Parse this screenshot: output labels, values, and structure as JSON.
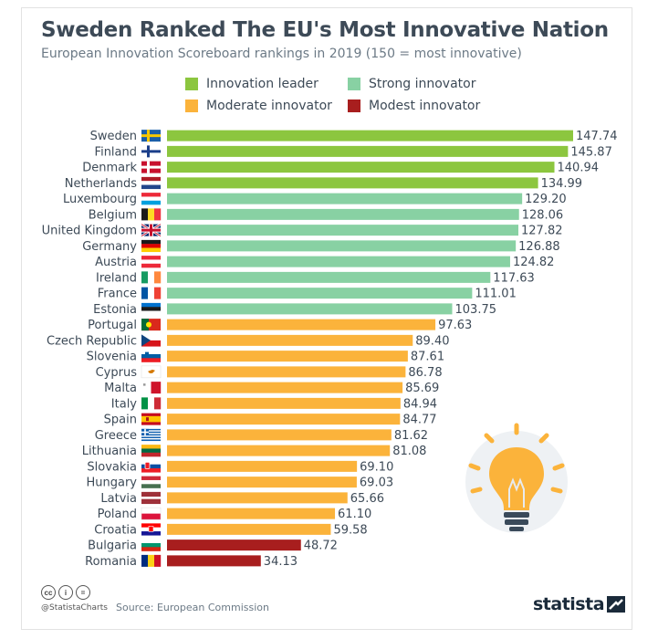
{
  "title": "Sweden Ranked The EU's Most Innovative Nation",
  "subtitle": "European Innovation Scoreboard rankings in 2019 (150 = most innovative)",
  "legend": [
    {
      "label": "Innovation leader",
      "color": "#8cc63f"
    },
    {
      "label": "Strong innovator",
      "color": "#88d1a3"
    },
    {
      "label": "Moderate innovator",
      "color": "#fbb33b"
    },
    {
      "label": "Modest innovator",
      "color": "#a81e1e"
    }
  ],
  "chart_data": {
    "type": "bar",
    "orientation": "horizontal",
    "title": "Sweden Ranked The EU's Most Innovative Nation",
    "subtitle": "European Innovation Scoreboard rankings in 2019 (150 = most innovative)",
    "xlim": [
      0,
      150
    ],
    "grid": false,
    "legend_placement": "top",
    "categories": [
      "Sweden",
      "Finland",
      "Denmark",
      "Netherlands",
      "Luxembourg",
      "Belgium",
      "United Kingdom",
      "Germany",
      "Austria",
      "Ireland",
      "France",
      "Estonia",
      "Portugal",
      "Czech Republic",
      "Slovenia",
      "Cyprus",
      "Malta",
      "Italy",
      "Spain",
      "Greece",
      "Lithuania",
      "Slovakia",
      "Hungary",
      "Latvia",
      "Poland",
      "Croatia",
      "Bulgaria",
      "Romania"
    ],
    "value_labels": [
      "147.74",
      "145.87",
      "140.94",
      "134.99",
      "129.20",
      "128.06",
      "127.82",
      "126.88",
      "124.82",
      "117.63",
      "111.01",
      "103.75",
      "97.63",
      "89.40",
      "87.61",
      "86.78",
      "85.69",
      "84.94",
      "84.77",
      "81.62",
      "81.08",
      "69.10",
      "69.03",
      "65.66",
      "61.10",
      "59.58",
      "48.72",
      "34.13"
    ],
    "values": [
      147.74,
      145.87,
      140.94,
      134.99,
      129.2,
      128.06,
      127.82,
      126.88,
      124.82,
      117.63,
      111.01,
      103.75,
      97.63,
      89.4,
      87.61,
      86.78,
      85.69,
      84.94,
      84.77,
      81.62,
      81.08,
      69.1,
      69.03,
      65.66,
      61.1,
      59.58,
      48.72,
      34.13
    ],
    "groups": [
      "Innovation leader",
      "Innovation leader",
      "Innovation leader",
      "Innovation leader",
      "Strong innovator",
      "Strong innovator",
      "Strong innovator",
      "Strong innovator",
      "Strong innovator",
      "Strong innovator",
      "Strong innovator",
      "Strong innovator",
      "Moderate innovator",
      "Moderate innovator",
      "Moderate innovator",
      "Moderate innovator",
      "Moderate innovator",
      "Moderate innovator",
      "Moderate innovator",
      "Moderate innovator",
      "Moderate innovator",
      "Moderate innovator",
      "Moderate innovator",
      "Moderate innovator",
      "Moderate innovator",
      "Moderate innovator",
      "Modest innovator",
      "Modest innovator"
    ],
    "flags": [
      "sweden-flag",
      "finland-flag",
      "denmark-flag",
      "netherlands-flag",
      "luxembourg-flag",
      "belgium-flag",
      "united-kingdom-flag",
      "germany-flag",
      "austria-flag",
      "ireland-flag",
      "france-flag",
      "estonia-flag",
      "portugal-flag",
      "czech-republic-flag",
      "slovenia-flag",
      "cyprus-flag",
      "malta-flag",
      "italy-flag",
      "spain-flag",
      "greece-flag",
      "lithuania-flag",
      "slovakia-flag",
      "hungary-flag",
      "latvia-flag",
      "poland-flag",
      "croatia-flag",
      "bulgaria-flag",
      "romania-flag"
    ]
  },
  "footer": {
    "license_icons": [
      "cc-icon",
      "by-icon",
      "nd-icon"
    ],
    "license_glyphs": [
      "cc",
      "i",
      "="
    ],
    "handle": "@StatistaCharts",
    "source": "Source: European Commission",
    "logo": "statista"
  },
  "decoration": {
    "icon": "lightbulb-icon",
    "circle_color": "#eef1f4",
    "bulb_color": "#fbb33b",
    "ray_color": "#fbb33b",
    "base_color": "#3a4a5a"
  }
}
